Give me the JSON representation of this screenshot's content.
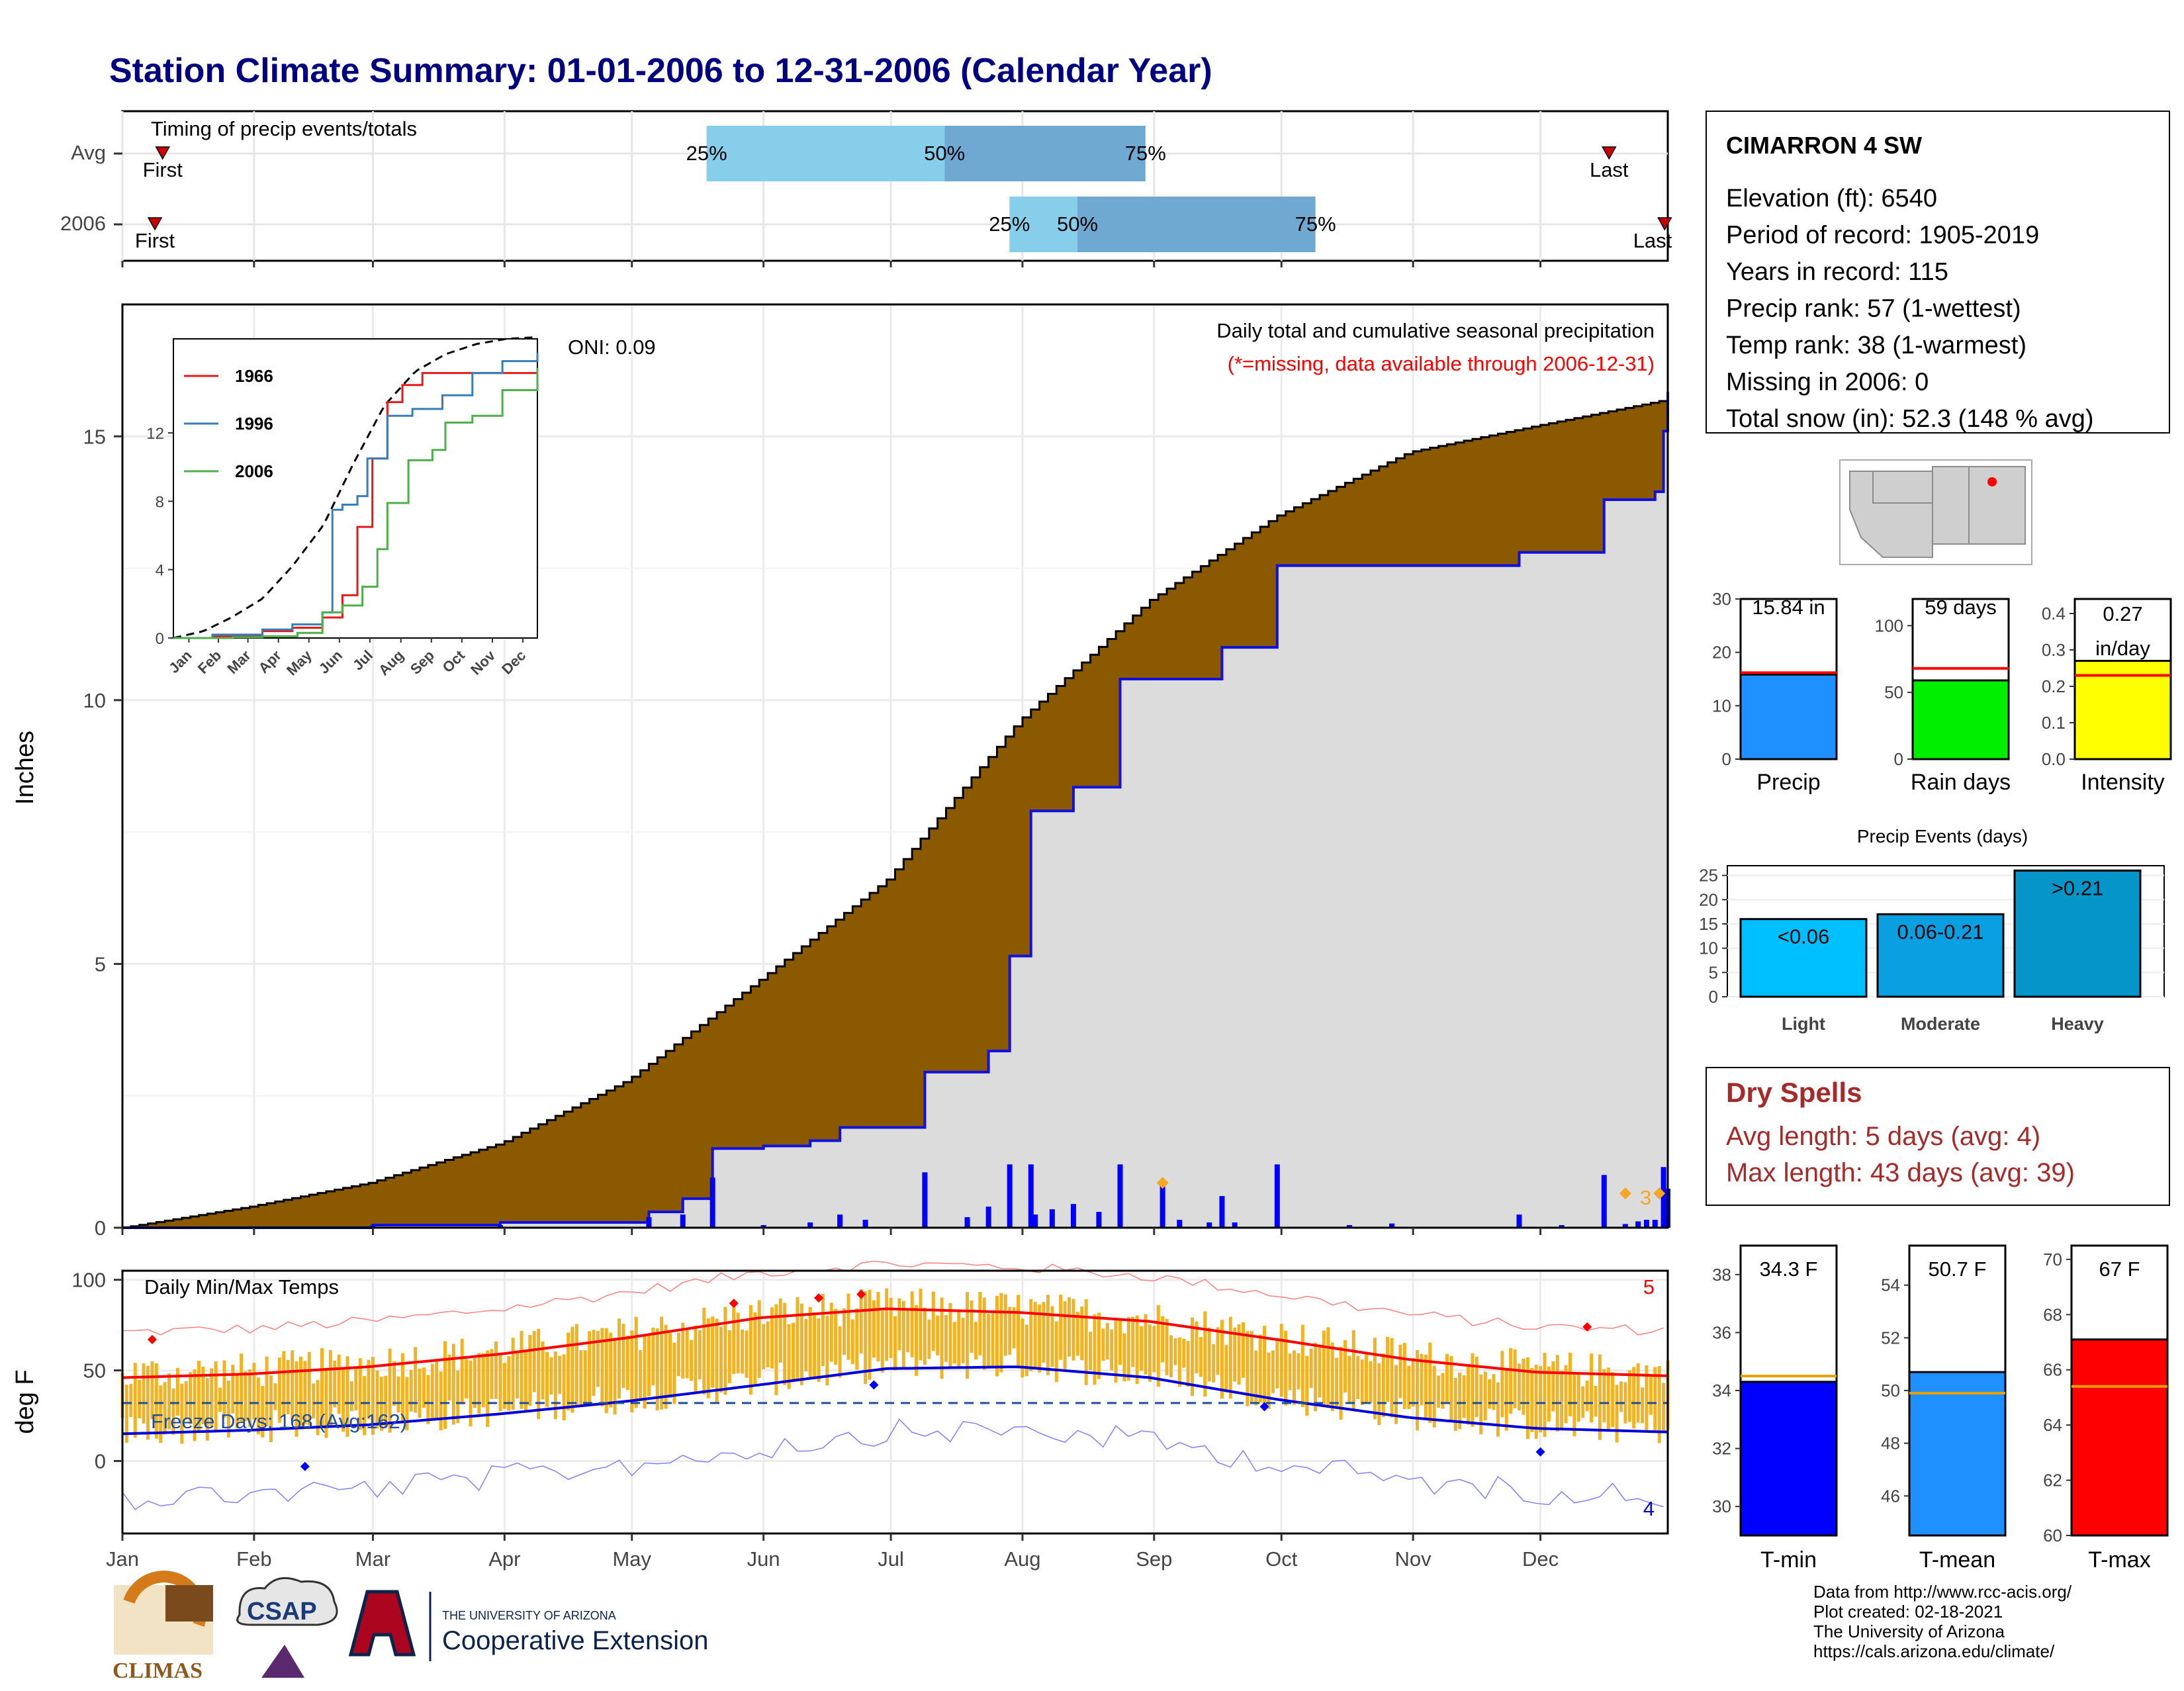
{
  "title": "Station Climate Summary: 01-01-2006 to 12-31-2006 (Calendar Year)",
  "timing_panel": {
    "label": "Timing of precip events/totals",
    "rows": [
      "Avg",
      "2006"
    ],
    "first_label": "First",
    "last_label": "Last",
    "avg": {
      "p25": "25%",
      "p50": "50%",
      "p75": "75%",
      "start": 0.378,
      "mid": 0.532,
      "end": 0.662,
      "first": 0.026,
      "last": 0.962
    },
    "y2006": {
      "p25": "25%",
      "p50": "50%",
      "p75": "75%",
      "start": 0.574,
      "mid": 0.618,
      "end": 0.772,
      "first": 0.021,
      "last": 0.998
    },
    "colors": {
      "light": "#87ceeb",
      "dark": "#6fa8d0",
      "marker": "#cc0000"
    }
  },
  "main_panel": {
    "ylabel": "Inches",
    "yticks": [
      "0",
      "5",
      "10",
      "15"
    ],
    "header": "Daily total and cumulative seasonal precipitation",
    "note": "(*=missing, data available through 2006-12-31)",
    "oni": "ONI: 0.09",
    "colors": {
      "avg_fill": "#8b5a00",
      "year_fill": "#dcdcdc",
      "line": "#1010e0",
      "note": "#ff0000",
      "orange": "#f5a623"
    },
    "orange_label": "3"
  },
  "inset": {
    "yticks": [
      "0",
      "4",
      "8",
      "12"
    ],
    "months": [
      "Jan",
      "Feb",
      "Mar",
      "Apr",
      "May",
      "Jun",
      "Jul",
      "Aug",
      "Sep",
      "Oct",
      "Nov",
      "Dec"
    ],
    "legend": [
      {
        "name": "1966",
        "color": "#e41a1c"
      },
      {
        "name": "1996",
        "color": "#377eb8"
      },
      {
        "name": "2006",
        "color": "#4daf4a"
      }
    ]
  },
  "temp_panel": {
    "ylabel": "deg F",
    "yticks": [
      "0",
      "50",
      "100"
    ],
    "label": "Daily Min/Max Temps",
    "freeze": "Freeze Days: 168 (Avg:162)",
    "count_max": "5",
    "count_min": "4",
    "months": [
      "Jan",
      "Feb",
      "Mar",
      "Apr",
      "May",
      "Jun",
      "Jul",
      "Aug",
      "Sep",
      "Oct",
      "Nov",
      "Dec"
    ],
    "colors": {
      "bars": "#f0b323",
      "max": "#ff0000",
      "min": "#0000dd",
      "freeze": "#1f4e9e"
    }
  },
  "station": {
    "name": "CIMARRON 4 SW",
    "lines": [
      "Elevation (ft): 6540",
      "Period of record: 1905-2019",
      "Years in record: 115",
      "Precip rank: 57 (1-wettest)",
      "Temp rank: 38 (1-warmest)",
      "Missing in 2006: 0",
      "Total snow (in): 52.3 (148 % avg)"
    ]
  },
  "mini_bars": [
    {
      "label": "Precip",
      "value_text": "15.84 in",
      "value": 15.84,
      "avg": 16.2,
      "ymax": 30,
      "yticks": [
        "0",
        "10",
        "20",
        "30"
      ],
      "color": "#1e90ff"
    },
    {
      "label": "Rain days",
      "value_text": "59 days",
      "value": 59,
      "avg": 68,
      "ymax": 120,
      "yticks": [
        "0",
        "50",
        "100"
      ],
      "color": "#00ee00"
    },
    {
      "label": "Intensity",
      "value_text": "0.27 in/day",
      "value": 0.27,
      "avg": 0.23,
      "ymax": 0.44,
      "yticks": [
        "0.0",
        "0.1",
        "0.2",
        "0.3",
        "0.4"
      ],
      "color": "#ffff00"
    }
  ],
  "precip_events": {
    "title": "Precip Events (days)",
    "yticks": [
      "0",
      "5",
      "10",
      "15",
      "20",
      "25"
    ],
    "categories": [
      "Light",
      "Moderate",
      "Heavy"
    ],
    "bar_labels": [
      "<0.06",
      "0.06-0.21",
      ">0.21"
    ],
    "values": [
      16,
      17,
      26
    ],
    "colors": [
      "#00bfff",
      "#0a9fe0",
      "#0595c8"
    ]
  },
  "dry_spells": {
    "title": "Dry Spells",
    "avg": "Avg length: 5 days (avg: 4)",
    "max": "Max length: 43 days (avg: 39)",
    "color": "#a52a2a"
  },
  "temp_bars": [
    {
      "label": "T-min",
      "value_text": "34.3 F",
      "value": 34.3,
      "avg": 34.5,
      "ymin": 29,
      "ymax": 39,
      "yticks": [
        "30",
        "32",
        "34",
        "36",
        "38"
      ],
      "color": "#0000ff"
    },
    {
      "label": "T-mean",
      "value_text": "50.7 F",
      "value": 50.7,
      "avg": 49.9,
      "ymin": 44.5,
      "ymax": 55.5,
      "yticks": [
        "46",
        "48",
        "50",
        "52",
        "54"
      ],
      "color": "#1e90ff"
    },
    {
      "label": "T-max",
      "value_text": "67 F",
      "value": 67.1,
      "avg": 65.4,
      "ymin": 60,
      "ymax": 70.5,
      "yticks": [
        "60",
        "62",
        "64",
        "66",
        "68",
        "70"
      ],
      "color": "#ff0000"
    }
  ],
  "logos": {
    "climas": "CLIMAS",
    "csap": "CSAP",
    "ua_small": "THE UNIVERSITY OF ARIZONA",
    "ua_big": "Cooperative Extension"
  },
  "footer": [
    "Data from http://www.rcc-acis.org/",
    "Plot created: 02-18-2021",
    "The University of Arizona",
    "https://cals.arizona.edu/climate/"
  ],
  "chart_data": [
    {
      "type": "area",
      "title": "Daily total and cumulative seasonal precipitation",
      "ylabel": "Inches",
      "ylim": [
        0,
        17.5
      ],
      "x_months": [
        "Jan",
        "Feb",
        "Mar",
        "Apr",
        "May",
        "Jun",
        "Jul",
        "Aug",
        "Sep",
        "Oct",
        "Nov",
        "Dec"
      ],
      "series": [
        {
          "name": "Avg",
          "x_doy": [
            1,
            31,
            59,
            90,
            120,
            151,
            181,
            212,
            243,
            273,
            304,
            334,
            365
          ],
          "values": [
            0.0,
            0.4,
            0.85,
            1.6,
            2.8,
            4.7,
            6.6,
            9.6,
            11.9,
            13.5,
            14.7,
            15.2,
            15.7
          ]
        },
        {
          "name": "2006",
          "x_doy": [
            1,
            60,
            90,
            125,
            133,
            140,
            152,
            163,
            170,
            190,
            205,
            210,
            215,
            225,
            236,
            260,
            273,
            300,
            330,
            350,
            362,
            364,
            365
          ],
          "values": [
            0.0,
            0.05,
            0.1,
            0.3,
            0.55,
            1.5,
            1.55,
            1.65,
            1.9,
            2.95,
            3.35,
            5.15,
            7.9,
            8.35,
            10.4,
            11.0,
            12.55,
            12.55,
            12.8,
            13.8,
            13.95,
            15.1,
            15.84
          ]
        }
      ]
    },
    {
      "type": "line",
      "title": "Daily Min/Max Temps",
      "ylabel": "deg F",
      "ylim": [
        -40,
        105
      ],
      "x_doy": [
        1,
        31,
        59,
        90,
        120,
        151,
        181,
        212,
        243,
        273,
        304,
        334,
        365
      ],
      "series": [
        {
          "name": "avg max",
          "values": [
            46,
            48,
            52,
            59,
            68,
            79,
            84,
            82,
            77,
            67,
            56,
            49,
            47
          ]
        },
        {
          "name": "avg min",
          "values": [
            15,
            17,
            20,
            26,
            33,
            42,
            51,
            52,
            46,
            34,
            24,
            18,
            16
          ]
        }
      ]
    }
  ]
}
